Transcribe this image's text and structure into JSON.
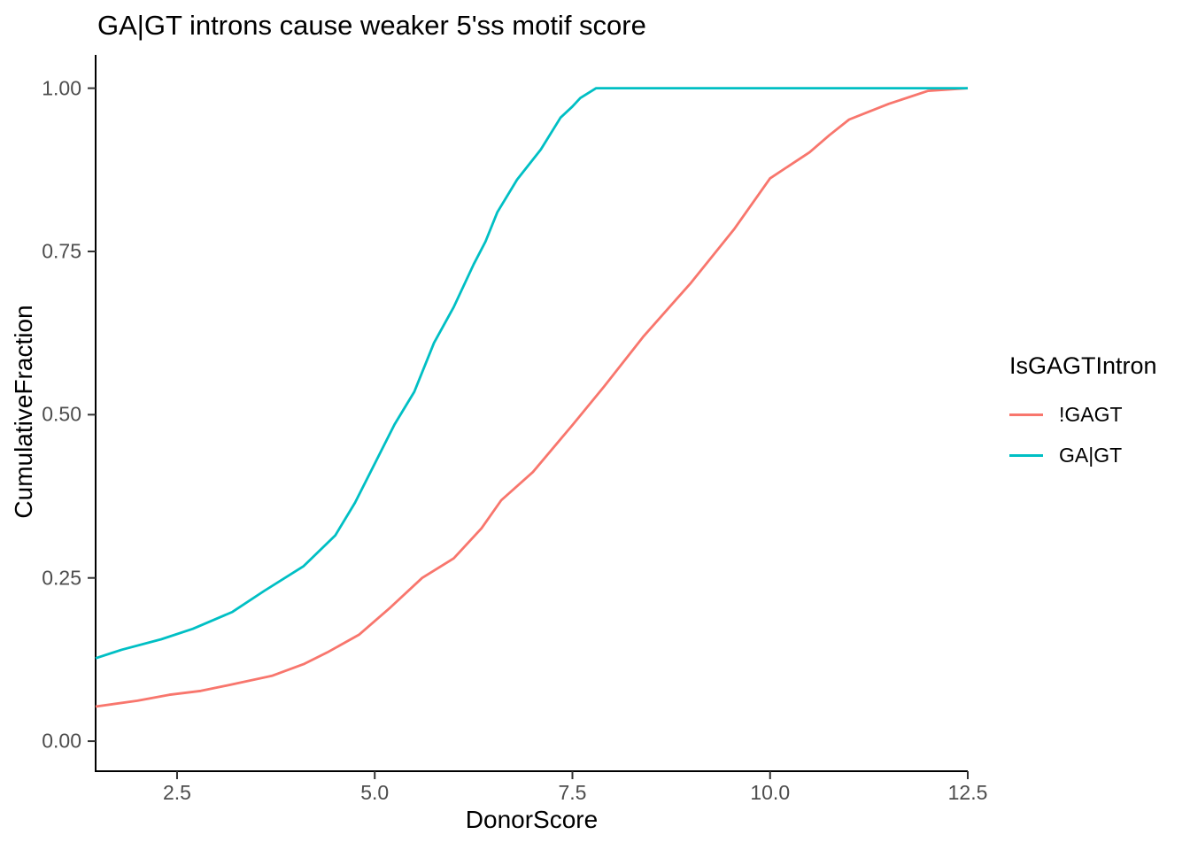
{
  "title": "GA|GT introns cause weaker 5'ss motif score",
  "axes": {
    "x_label": "DonorScore",
    "y_label": "CumulativeFraction"
  },
  "legend": {
    "title": "IsGAGTIntron",
    "entries": [
      {
        "label": "!GAGT",
        "color": "#F8766D"
      },
      {
        "label": "GA|GT",
        "color": "#00BFC4"
      }
    ]
  },
  "colors": {
    "background": "#FFFFFF",
    "axis_line": "#000000",
    "tick_mark": "#333333",
    "axis_text": "#4D4D4D",
    "series_not_gagt": "#F8766D",
    "series_gagt": "#00BFC4"
  },
  "chart_data": {
    "type": "line",
    "variant": "ecdf",
    "title": "GA|GT introns cause weaker 5'ss motif score",
    "xlabel": "DonorScore",
    "ylabel": "CumulativeFraction",
    "xlim": [
      1.47,
      12.5
    ],
    "ylim": [
      -0.046,
      1.051
    ],
    "grid": false,
    "legend_position": "right",
    "legend_title": "IsGAGTIntron",
    "x_ticks": {
      "values": [
        2.5,
        5.0,
        7.5,
        10.0,
        12.5
      ],
      "labels": [
        "2.5",
        "5.0",
        "7.5",
        "10.0",
        "12.5"
      ]
    },
    "y_ticks": {
      "values": [
        0.0,
        0.25,
        0.5,
        0.75,
        1.0
      ],
      "labels": [
        "0.00",
        "0.25",
        "0.50",
        "0.75",
        "1.00"
      ]
    },
    "series": [
      {
        "name": "!GAGT",
        "color": "#F8766D",
        "points": [
          [
            1.47,
            0.053
          ],
          [
            2.0,
            0.062
          ],
          [
            2.4,
            0.071
          ],
          [
            2.8,
            0.077
          ],
          [
            3.2,
            0.087
          ],
          [
            3.7,
            0.1
          ],
          [
            4.1,
            0.118
          ],
          [
            4.4,
            0.136
          ],
          [
            4.8,
            0.163
          ],
          [
            5.2,
            0.205
          ],
          [
            5.6,
            0.25
          ],
          [
            6.0,
            0.28
          ],
          [
            6.35,
            0.326
          ],
          [
            6.6,
            0.369
          ],
          [
            7.0,
            0.412
          ],
          [
            7.5,
            0.484
          ],
          [
            7.9,
            0.543
          ],
          [
            8.4,
            0.62
          ],
          [
            9.0,
            0.702
          ],
          [
            9.55,
            0.785
          ],
          [
            10.0,
            0.862
          ],
          [
            10.5,
            0.902
          ],
          [
            10.75,
            0.928
          ],
          [
            11.0,
            0.952
          ],
          [
            11.5,
            0.976
          ],
          [
            12.0,
            0.996
          ],
          [
            12.5,
            1.0
          ]
        ]
      },
      {
        "name": "GA|GT",
        "color": "#00BFC4",
        "points": [
          [
            1.47,
            0.127
          ],
          [
            1.8,
            0.14
          ],
          [
            2.3,
            0.156
          ],
          [
            2.7,
            0.172
          ],
          [
            3.2,
            0.198
          ],
          [
            3.6,
            0.23
          ],
          [
            4.1,
            0.268
          ],
          [
            4.5,
            0.315
          ],
          [
            4.75,
            0.365
          ],
          [
            5.0,
            0.425
          ],
          [
            5.25,
            0.485
          ],
          [
            5.5,
            0.535
          ],
          [
            5.75,
            0.61
          ],
          [
            6.0,
            0.665
          ],
          [
            6.25,
            0.73
          ],
          [
            6.4,
            0.765
          ],
          [
            6.55,
            0.81
          ],
          [
            6.8,
            0.86
          ],
          [
            7.1,
            0.906
          ],
          [
            7.35,
            0.955
          ],
          [
            7.5,
            0.972
          ],
          [
            7.6,
            0.985
          ],
          [
            7.8,
            1.0
          ],
          [
            12.5,
            1.0
          ]
        ]
      }
    ]
  }
}
